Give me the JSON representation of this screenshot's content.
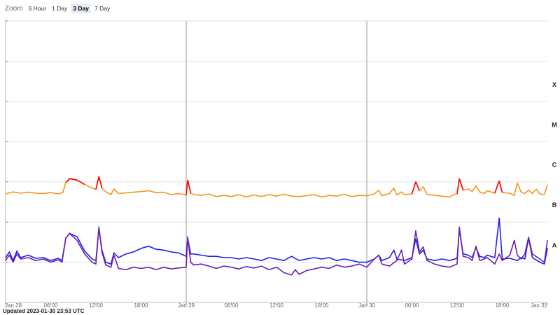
{
  "zoom": {
    "label": "Zoom",
    "buttons": [
      "6 Hour",
      "1 Day",
      "3 Day",
      "7 Day"
    ],
    "selected": "3 Day"
  },
  "updated_text": "Updated 2023-01-30 23:53 UTC",
  "chart_data": {
    "type": "line",
    "x_range_hours": [
      0,
      72
    ],
    "x_start": "2023-01-28 00:00",
    "x_ticks": [
      {
        "hour": 0,
        "label": "Jan 28"
      },
      {
        "hour": 6,
        "label": "06:00"
      },
      {
        "hour": 12,
        "label": "12:00"
      },
      {
        "hour": 18,
        "label": "18:00"
      },
      {
        "hour": 24,
        "label": "Jan 29"
      },
      {
        "hour": 30,
        "label": "06:00"
      },
      {
        "hour": 36,
        "label": "12:00"
      },
      {
        "hour": 42,
        "label": "18:00"
      },
      {
        "hour": 48,
        "label": "Jan 30"
      },
      {
        "hour": 54,
        "label": "06:00"
      },
      {
        "hour": 60,
        "label": "12:00"
      },
      {
        "hour": 66,
        "label": "18:00"
      },
      {
        "hour": 72,
        "label": "Jan 31"
      }
    ],
    "y_scale": "log",
    "y_range": [
      1e-09,
      0.01
    ],
    "flux_classes": [
      {
        "label": "A",
        "flux": 1e-08
      },
      {
        "label": "B",
        "flux": 1e-07
      },
      {
        "label": "C",
        "flux": 1e-06
      },
      {
        "label": "M",
        "flux": 1e-05
      },
      {
        "label": "X",
        "flux": 0.0001
      }
    ],
    "grid": true,
    "series": [
      {
        "key": "long",
        "color": "#f7941d",
        "highlight_color": "#ff0000",
        "highlight_threshold": 1e-06,
        "points": [
          [
            0,
            5e-07
          ],
          [
            1,
            5.6e-07
          ],
          [
            2,
            5.2e-07
          ],
          [
            3,
            5.5e-07
          ],
          [
            4,
            5.2e-07
          ],
          [
            5,
            5.1e-07
          ],
          [
            6,
            5.4e-07
          ],
          [
            7,
            5e-07
          ],
          [
            7.6,
            5.4e-07
          ],
          [
            8,
            9.5e-07
          ],
          [
            8.5,
            1.2e-06
          ],
          [
            9.5,
            1.1e-06
          ],
          [
            10.5,
            8.6e-07
          ],
          [
            11.5,
            7e-07
          ],
          [
            12,
            6.5e-07
          ],
          [
            12.4,
            1.35e-06
          ],
          [
            12.8,
            7e-07
          ],
          [
            13.3,
            5.7e-07
          ],
          [
            14,
            4.8e-07
          ],
          [
            14.4,
            6.6e-07
          ],
          [
            15,
            5.1e-07
          ],
          [
            16,
            5.3e-07
          ],
          [
            17,
            5.5e-07
          ],
          [
            18,
            5.7e-07
          ],
          [
            19,
            6e-07
          ],
          [
            20,
            5.4e-07
          ],
          [
            21,
            5.5e-07
          ],
          [
            22,
            4.8e-07
          ],
          [
            23,
            5.1e-07
          ],
          [
            24,
            4.7e-07
          ],
          [
            24.2,
            1.1e-06
          ],
          [
            24.6,
            5.2e-07
          ],
          [
            25,
            4.8e-07
          ],
          [
            26,
            4.6e-07
          ],
          [
            27,
            5e-07
          ],
          [
            28,
            4.3e-07
          ],
          [
            29,
            4.6e-07
          ],
          [
            30,
            4.3e-07
          ],
          [
            31,
            4.8e-07
          ],
          [
            32,
            4.2e-07
          ],
          [
            33,
            4.7e-07
          ],
          [
            34,
            4.3e-07
          ],
          [
            35,
            4.8e-07
          ],
          [
            36,
            4.4e-07
          ],
          [
            37,
            4.9e-07
          ],
          [
            38,
            4.4e-07
          ],
          [
            39,
            4.3e-07
          ],
          [
            40,
            4.5e-07
          ],
          [
            41,
            4.8e-07
          ],
          [
            42,
            4.2e-07
          ],
          [
            43,
            4.6e-07
          ],
          [
            44,
            4.4e-07
          ],
          [
            45,
            4.9e-07
          ],
          [
            46,
            4.3e-07
          ],
          [
            47,
            4.6e-07
          ],
          [
            48,
            4.5e-07
          ],
          [
            49,
            5e-07
          ],
          [
            49.6,
            6.2e-07
          ],
          [
            50,
            4.5e-07
          ],
          [
            51,
            5.1e-07
          ],
          [
            51.6,
            7e-07
          ],
          [
            52,
            4.7e-07
          ],
          [
            52.6,
            5.6e-07
          ],
          [
            53,
            4.8e-07
          ],
          [
            54,
            5e-07
          ],
          [
            54.5,
            1e-06
          ],
          [
            55,
            6e-07
          ],
          [
            55.5,
            7.5e-07
          ],
          [
            56,
            4.9e-07
          ],
          [
            57,
            4.6e-07
          ],
          [
            58,
            4.4e-07
          ],
          [
            59,
            4.2e-07
          ],
          [
            59.5,
            4.8e-07
          ],
          [
            60,
            5e-07
          ],
          [
            60.3,
            1.2e-06
          ],
          [
            60.8,
            6.2e-07
          ],
          [
            61.5,
            6.6e-07
          ],
          [
            62,
            5.8e-07
          ],
          [
            62.5,
            8e-07
          ],
          [
            63,
            5.6e-07
          ],
          [
            63.6,
            5.1e-07
          ],
          [
            64,
            6e-07
          ],
          [
            65,
            5.2e-07
          ],
          [
            65.6,
            1.05e-06
          ],
          [
            66,
            5.4e-07
          ],
          [
            67,
            5.2e-07
          ],
          [
            67.6,
            4.6e-07
          ],
          [
            68,
            9.3e-07
          ],
          [
            68.5,
            5.6e-07
          ],
          [
            69,
            5.1e-07
          ],
          [
            69.5,
            6.2e-07
          ],
          [
            70,
            5.1e-07
          ],
          [
            70.5,
            6.6e-07
          ],
          [
            71,
            5e-07
          ],
          [
            71.6,
            4.8e-07
          ],
          [
            72,
            8.4e-07
          ]
        ]
      },
      {
        "key": "short_a",
        "color": "#1f1ff0",
        "points": [
          [
            0,
            1.3e-08
          ],
          [
            0.5,
            1.8e-08
          ],
          [
            1,
            1.1e-08
          ],
          [
            1.5,
            1.9e-08
          ],
          [
            2,
            1.3e-08
          ],
          [
            3,
            1.5e-08
          ],
          [
            4,
            1.25e-08
          ],
          [
            5,
            1.3e-08
          ],
          [
            6,
            1.1e-08
          ],
          [
            7,
            1.25e-08
          ],
          [
            7.5,
            1.1e-08
          ],
          [
            8,
            4e-08
          ],
          [
            8.5,
            5.2e-08
          ],
          [
            9.5,
            4.3e-08
          ],
          [
            10.5,
            1.9e-08
          ],
          [
            11.5,
            1.2e-08
          ],
          [
            12,
            1.1e-08
          ],
          [
            12.4,
            7e-08
          ],
          [
            12.8,
            2e-08
          ],
          [
            13.3,
            1e-08
          ],
          [
            14,
            9e-09
          ],
          [
            14.4,
            1.7e-08
          ],
          [
            15,
            1.3e-08
          ],
          [
            16,
            1.6e-08
          ],
          [
            17,
            1.8e-08
          ],
          [
            18,
            2.2e-08
          ],
          [
            19,
            2.5e-08
          ],
          [
            20,
            2.1e-08
          ],
          [
            21,
            2e-08
          ],
          [
            22,
            1.8e-08
          ],
          [
            23,
            1.7e-08
          ],
          [
            24,
            1.4e-08
          ],
          [
            24.2,
            4e-08
          ],
          [
            24.6,
            1.6e-08
          ],
          [
            25,
            1.6e-08
          ],
          [
            26,
            1.5e-08
          ],
          [
            27,
            1.4e-08
          ],
          [
            28,
            1.4e-08
          ],
          [
            29,
            1.3e-08
          ],
          [
            30,
            1.3e-08
          ],
          [
            31,
            1.2e-08
          ],
          [
            32,
            1.3e-08
          ],
          [
            33,
            1.2e-08
          ],
          [
            34,
            1.1e-08
          ],
          [
            35,
            1.3e-08
          ],
          [
            36,
            1.2e-08
          ],
          [
            37,
            1.1e-08
          ],
          [
            38,
            1.4e-08
          ],
          [
            39,
            1.1e-08
          ],
          [
            40,
            1.2e-08
          ],
          [
            41,
            1.3e-08
          ],
          [
            42,
            1.2e-08
          ],
          [
            43,
            1.3e-08
          ],
          [
            44,
            1.1e-08
          ],
          [
            45,
            1.2e-08
          ],
          [
            46,
            1.1e-08
          ],
          [
            47,
            1e-08
          ],
          [
            48,
            1e-08
          ],
          [
            49,
            1.2e-08
          ],
          [
            49.6,
            1.5e-08
          ],
          [
            50,
            1.1e-08
          ],
          [
            51,
            1.3e-08
          ],
          [
            51.6,
            2e-08
          ],
          [
            52,
            1.2e-08
          ],
          [
            53,
            1.1e-08
          ],
          [
            54,
            1.3e-08
          ],
          [
            54.5,
            3.8e-08
          ],
          [
            55,
            1.6e-08
          ],
          [
            55.5,
            2e-08
          ],
          [
            56,
            1.2e-08
          ],
          [
            57,
            1.1e-08
          ],
          [
            58,
            1.2e-08
          ],
          [
            59,
            1.1e-08
          ],
          [
            60,
            1.25e-08
          ],
          [
            60.3,
            6.5e-08
          ],
          [
            60.8,
            1.6e-08
          ],
          [
            61.5,
            1.5e-08
          ],
          [
            62,
            1.3e-08
          ],
          [
            62.5,
            2.3e-08
          ],
          [
            63,
            1.4e-08
          ],
          [
            63.6,
            1.3e-08
          ],
          [
            64,
            1.5e-08
          ],
          [
            65,
            1.3e-08
          ],
          [
            65.6,
            1.25e-07
          ],
          [
            66,
            1.2e-08
          ],
          [
            67,
            1.25e-08
          ],
          [
            68,
            1.1e-08
          ],
          [
            68.5,
            1.3e-08
          ],
          [
            69,
            1.2e-08
          ],
          [
            69.5,
            4e-08
          ],
          [
            70,
            1.3e-08
          ],
          [
            71,
            1e-08
          ],
          [
            71.6,
            9e-09
          ],
          [
            72,
            2.2e-08
          ]
        ]
      },
      {
        "key": "short_b",
        "color": "#6a1fb0",
        "points": [
          [
            0,
            1.1e-08
          ],
          [
            0.5,
            1.5e-08
          ],
          [
            1,
            1e-08
          ],
          [
            1.5,
            1.6e-08
          ],
          [
            2,
            1.2e-08
          ],
          [
            3,
            1.3e-08
          ],
          [
            4,
            1.1e-08
          ],
          [
            5,
            1.2e-08
          ],
          [
            6,
            1e-08
          ],
          [
            7,
            1.15e-08
          ],
          [
            7.5,
            1e-08
          ],
          [
            8,
            4e-08
          ],
          [
            8.5,
            5.2e-08
          ],
          [
            9.5,
            3.5e-08
          ],
          [
            10.5,
            1.6e-08
          ],
          [
            11.5,
            1e-08
          ],
          [
            12,
            9e-09
          ],
          [
            12.4,
            7.5e-08
          ],
          [
            12.8,
            1.8e-08
          ],
          [
            13.3,
            8.5e-09
          ],
          [
            14,
            7.5e-09
          ],
          [
            14.4,
            1.5e-08
          ],
          [
            15,
            7e-09
          ],
          [
            16,
            6.5e-09
          ],
          [
            17,
            7.5e-09
          ],
          [
            18,
            7e-09
          ],
          [
            19,
            7.5e-09
          ],
          [
            20,
            6.5e-09
          ],
          [
            21,
            7.5e-09
          ],
          [
            22,
            6.8e-09
          ],
          [
            23,
            7.2e-09
          ],
          [
            24,
            7.5e-09
          ],
          [
            24.2,
            4.3e-08
          ],
          [
            24.6,
            1e-08
          ],
          [
            25,
            8.5e-09
          ],
          [
            26,
            9e-09
          ],
          [
            27,
            8e-09
          ],
          [
            28,
            7e-09
          ],
          [
            29,
            8e-09
          ],
          [
            30,
            7.5e-09
          ],
          [
            31,
            6.8e-09
          ],
          [
            32,
            7.8e-09
          ],
          [
            33,
            7.2e-09
          ],
          [
            34,
            8e-09
          ],
          [
            35,
            6.5e-09
          ],
          [
            36,
            7.5e-09
          ],
          [
            37,
            5.5e-09
          ],
          [
            38,
            4.8e-09
          ],
          [
            38.5,
            6.5e-09
          ],
          [
            39,
            5e-09
          ],
          [
            40,
            6.2e-09
          ],
          [
            41,
            6.8e-09
          ],
          [
            42,
            7.5e-09
          ],
          [
            43,
            7e-09
          ],
          [
            44,
            8.5e-09
          ],
          [
            45,
            7.5e-09
          ],
          [
            46,
            8e-09
          ],
          [
            47,
            9e-09
          ],
          [
            48,
            7.5e-09
          ],
          [
            49,
            1.2e-08
          ],
          [
            49.6,
            1.5e-08
          ],
          [
            50,
            9e-09
          ],
          [
            51,
            8e-09
          ],
          [
            52,
            1.1e-08
          ],
          [
            52.6,
            2e-08
          ],
          [
            53,
            9e-09
          ],
          [
            54,
            1.2e-08
          ],
          [
            54.5,
            6e-08
          ],
          [
            55,
            1.8e-08
          ],
          [
            55.5,
            2.4e-08
          ],
          [
            56,
            1.1e-08
          ],
          [
            57,
            9e-09
          ],
          [
            58,
            8e-09
          ],
          [
            59,
            7.5e-09
          ],
          [
            60,
            9e-09
          ],
          [
            60.3,
            7.5e-08
          ],
          [
            60.8,
            1.4e-08
          ],
          [
            61.5,
            1.3e-08
          ],
          [
            62,
            1.1e-08
          ],
          [
            62.5,
            2.5e-08
          ],
          [
            63,
            1.1e-08
          ],
          [
            63.6,
            1.2e-08
          ],
          [
            64,
            1.3e-08
          ],
          [
            65,
            9e-09
          ],
          [
            65.6,
            1.6e-08
          ],
          [
            66,
            1.1e-08
          ],
          [
            67,
            1.5e-08
          ],
          [
            67.6,
            3.5e-08
          ],
          [
            68,
            1.5e-08
          ],
          [
            68.5,
            1.2e-08
          ],
          [
            69,
            1.6e-08
          ],
          [
            69.5,
            4.2e-08
          ],
          [
            70,
            1.6e-08
          ],
          [
            71,
            1.2e-08
          ],
          [
            71.6,
            1e-08
          ],
          [
            72,
            3.5e-08
          ]
        ]
      }
    ]
  }
}
